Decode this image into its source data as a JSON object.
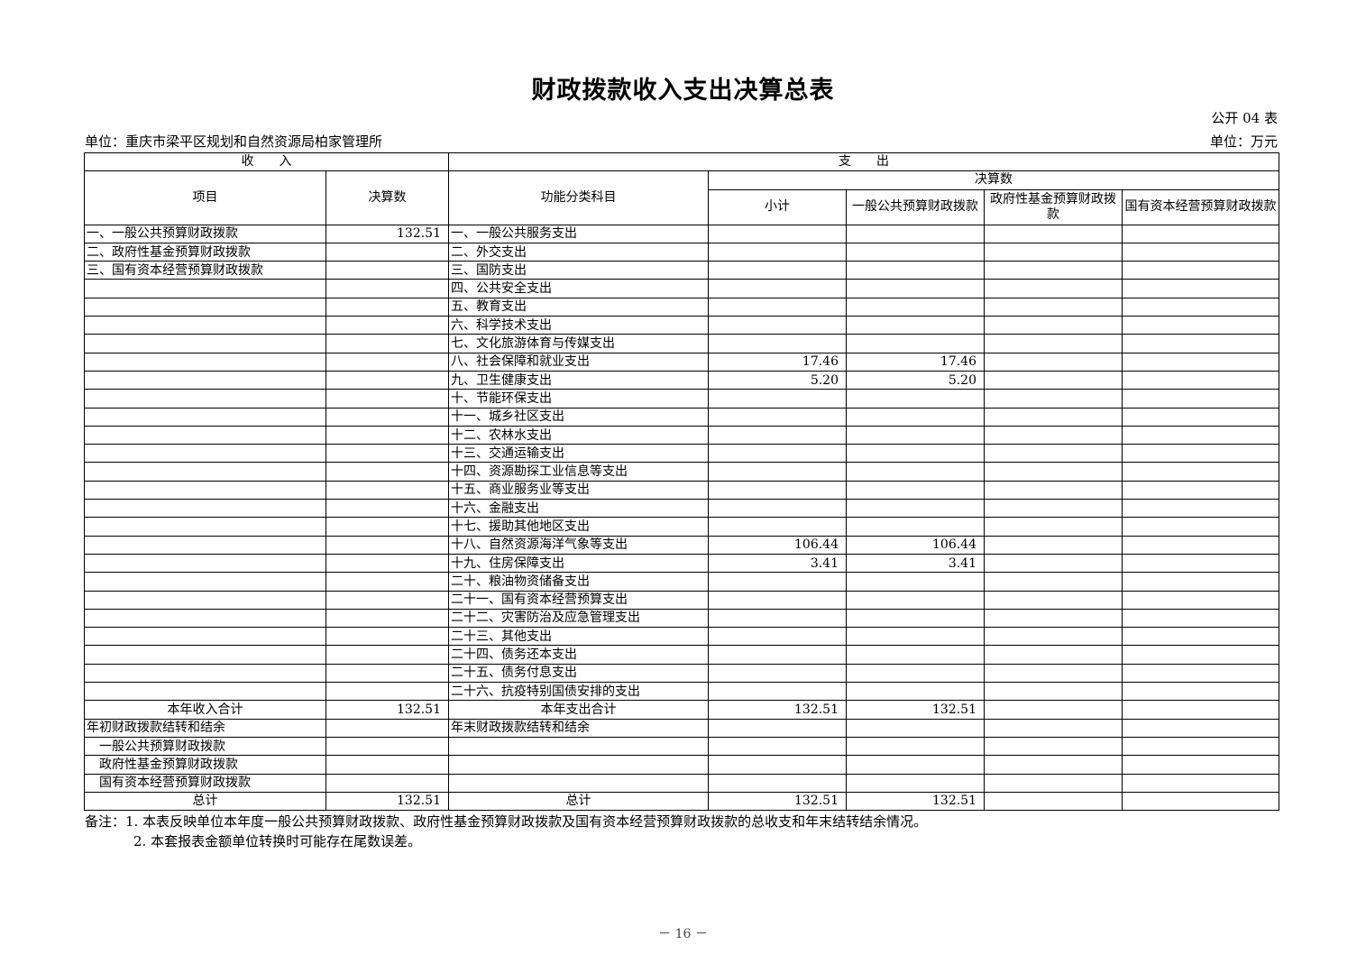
{
  "title": "财政拨款收入支出决算总表",
  "form_no": "公开 04 表",
  "unit_org": "单位：重庆市梁平区规划和自然资源局柏家管理所",
  "unit_currency": "单位：万元",
  "headers": {
    "income": "收　　入",
    "expense": "支　　出",
    "item": "项目",
    "amount": "决算数",
    "function_category": "功能分类科目",
    "final_amount": "决算数",
    "subtotal": "小计",
    "general_budget": "一般公共预算财政拨款",
    "gov_fund": "政府性基金预算财政拨款",
    "state_capital": "国有资本经营预算财政拨款"
  },
  "rows": [
    {
      "left": "一、一般公共预算财政拨款",
      "left_value": "132.51",
      "right": "一、一般公共服务支出",
      "subtotal": "",
      "general": "",
      "fund": "",
      "state": ""
    },
    {
      "left": "二、政府性基金预算财政拨款",
      "left_value": "",
      "right": "二、外交支出",
      "subtotal": "",
      "general": "",
      "fund": "",
      "state": ""
    },
    {
      "left": "三、国有资本经营预算财政拨款",
      "left_value": "",
      "right": "三、国防支出",
      "subtotal": "",
      "general": "",
      "fund": "",
      "state": ""
    },
    {
      "left": "",
      "left_value": "",
      "right": "四、公共安全支出",
      "subtotal": "",
      "general": "",
      "fund": "",
      "state": ""
    },
    {
      "left": "",
      "left_value": "",
      "right": "五、教育支出",
      "subtotal": "",
      "general": "",
      "fund": "",
      "state": ""
    },
    {
      "left": "",
      "left_value": "",
      "right": "六、科学技术支出",
      "subtotal": "",
      "general": "",
      "fund": "",
      "state": ""
    },
    {
      "left": "",
      "left_value": "",
      "right": "七、文化旅游体育与传媒支出",
      "subtotal": "",
      "general": "",
      "fund": "",
      "state": ""
    },
    {
      "left": "",
      "left_value": "",
      "right": "八、社会保障和就业支出",
      "subtotal": "17.46",
      "general": "17.46",
      "fund": "",
      "state": ""
    },
    {
      "left": "",
      "left_value": "",
      "right": "九、卫生健康支出",
      "subtotal": "5.20",
      "general": "5.20",
      "fund": "",
      "state": ""
    },
    {
      "left": "",
      "left_value": "",
      "right": "十、节能环保支出",
      "subtotal": "",
      "general": "",
      "fund": "",
      "state": ""
    },
    {
      "left": "",
      "left_value": "",
      "right": "十一、城乡社区支出",
      "subtotal": "",
      "general": "",
      "fund": "",
      "state": ""
    },
    {
      "left": "",
      "left_value": "",
      "right": "十二、农林水支出",
      "subtotal": "",
      "general": "",
      "fund": "",
      "state": ""
    },
    {
      "left": "",
      "left_value": "",
      "right": "十三、交通运输支出",
      "subtotal": "",
      "general": "",
      "fund": "",
      "state": ""
    },
    {
      "left": "",
      "left_value": "",
      "right": "十四、资源勘探工业信息等支出",
      "subtotal": "",
      "general": "",
      "fund": "",
      "state": ""
    },
    {
      "left": "",
      "left_value": "",
      "right": "十五、商业服务业等支出",
      "subtotal": "",
      "general": "",
      "fund": "",
      "state": ""
    },
    {
      "left": "",
      "left_value": "",
      "right": "十六、金融支出",
      "subtotal": "",
      "general": "",
      "fund": "",
      "state": ""
    },
    {
      "left": "",
      "left_value": "",
      "right": "十七、援助其他地区支出",
      "subtotal": "",
      "general": "",
      "fund": "",
      "state": ""
    },
    {
      "left": "",
      "left_value": "",
      "right": "十八、自然资源海洋气象等支出",
      "subtotal": "106.44",
      "general": "106.44",
      "fund": "",
      "state": ""
    },
    {
      "left": "",
      "left_value": "",
      "right": "十九、住房保障支出",
      "subtotal": "3.41",
      "general": "3.41",
      "fund": "",
      "state": ""
    },
    {
      "left": "",
      "left_value": "",
      "right": "二十、粮油物资储备支出",
      "subtotal": "",
      "general": "",
      "fund": "",
      "state": ""
    },
    {
      "left": "",
      "left_value": "",
      "right": "二十一、国有资本经营预算支出",
      "subtotal": "",
      "general": "",
      "fund": "",
      "state": ""
    },
    {
      "left": "",
      "left_value": "",
      "right": "二十二、灾害防治及应急管理支出",
      "subtotal": "",
      "general": "",
      "fund": "",
      "state": ""
    },
    {
      "left": "",
      "left_value": "",
      "right": "二十三、其他支出",
      "subtotal": "",
      "general": "",
      "fund": "",
      "state": ""
    },
    {
      "left": "",
      "left_value": "",
      "right": "二十四、债务还本支出",
      "subtotal": "",
      "general": "",
      "fund": "",
      "state": ""
    },
    {
      "left": "",
      "left_value": "",
      "right": "二十五、债务付息支出",
      "subtotal": "",
      "general": "",
      "fund": "",
      "state": ""
    },
    {
      "left": "",
      "left_value": "",
      "right": "二十六、抗疫特别国债安排的支出",
      "subtotal": "",
      "general": "",
      "fund": "",
      "state": ""
    },
    {
      "left": "本年收入合计",
      "left_value": "132.51",
      "right": "本年支出合计",
      "subtotal": "132.51",
      "general": "132.51",
      "fund": "",
      "state": "",
      "center": true
    },
    {
      "left": "年初财政拨款结转和结余",
      "left_value": "",
      "right": "年末财政拨款结转和结余",
      "subtotal": "",
      "general": "",
      "fund": "",
      "state": ""
    },
    {
      "left": "一般公共预算财政拨款",
      "left_value": "",
      "right": "",
      "subtotal": "",
      "general": "",
      "fund": "",
      "state": "",
      "indent": 1
    },
    {
      "left": "政府性基金预算财政拨款",
      "left_value": "",
      "right": "",
      "subtotal": "",
      "general": "",
      "fund": "",
      "state": "",
      "indent": 2
    },
    {
      "left": "国有资本经营预算财政拨款",
      "left_value": "",
      "right": "",
      "subtotal": "",
      "general": "",
      "fund": "",
      "state": "",
      "indent": 2
    },
    {
      "left": "总计",
      "left_value": "132.51",
      "right": "总计",
      "subtotal": "132.51",
      "general": "132.51",
      "fund": "",
      "state": "",
      "center": true
    }
  ],
  "notes": [
    "备注：1. 本表反映单位本年度一般公共预算财政拨款、政府性基金预算财政拨款及国有资本经营预算财政拨款的总收支和年末结转结余情况。",
    "2. 本套报表金额单位转换时可能存在尾数误差。"
  ],
  "page_number": "－ 16 －"
}
